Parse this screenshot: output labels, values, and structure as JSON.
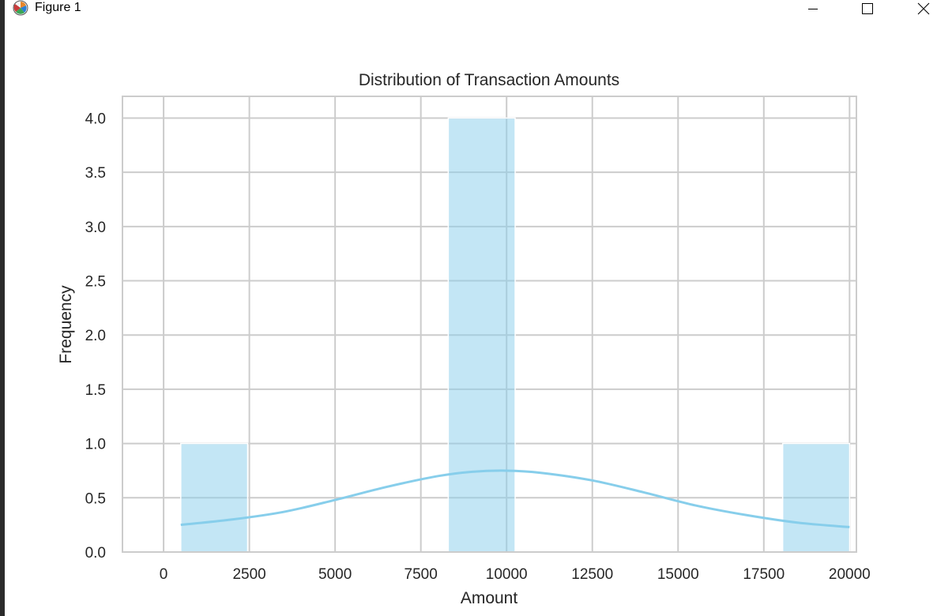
{
  "window": {
    "title": "Figure 1",
    "icon": "matplotlib-figure-icon",
    "controls": [
      "minimize-icon",
      "maximize-icon",
      "close-icon"
    ]
  },
  "colors": {
    "bar": "#87CEEB",
    "kde": "#87CEEB",
    "grid": "#cccccc",
    "text": "#262626"
  },
  "chart_data": {
    "type": "bar",
    "title": "Distribution of Transaction Amounts",
    "xlabel": "Amount",
    "ylabel": "Frequency",
    "xlim": [
      -1200,
      20200
    ],
    "ylim": [
      0,
      4.2
    ],
    "xticks": [
      0,
      2500,
      5000,
      7500,
      10000,
      12500,
      15000,
      17500,
      20000
    ],
    "xtick_labels": [
      "0",
      "2500",
      "5000",
      "7500",
      "10000",
      "12500",
      "15000",
      "17500",
      "20000"
    ],
    "yticks": [
      0,
      0.5,
      1,
      1.5,
      2,
      2.5,
      3,
      3.5,
      4
    ],
    "ytick_labels": [
      "0.0",
      "0.5",
      "1.0",
      "1.5",
      "2.0",
      "2.5",
      "3.0",
      "3.5",
      "4.0"
    ],
    "grid": true,
    "histogram": [
      {
        "x0": 500,
        "x1": 2450,
        "count": 1
      },
      {
        "x0": 8300,
        "x1": 10250,
        "count": 4
      },
      {
        "x0": 18050,
        "x1": 20000,
        "count": 1
      }
    ],
    "kde": {
      "x": [
        500,
        2000,
        3500,
        5000,
        6500,
        8000,
        9000,
        10000,
        11000,
        12500,
        14000,
        15500,
        17000,
        18500,
        20000
      ],
      "y": [
        0.25,
        0.3,
        0.37,
        0.48,
        0.6,
        0.7,
        0.74,
        0.75,
        0.73,
        0.66,
        0.55,
        0.43,
        0.34,
        0.27,
        0.23
      ]
    }
  }
}
